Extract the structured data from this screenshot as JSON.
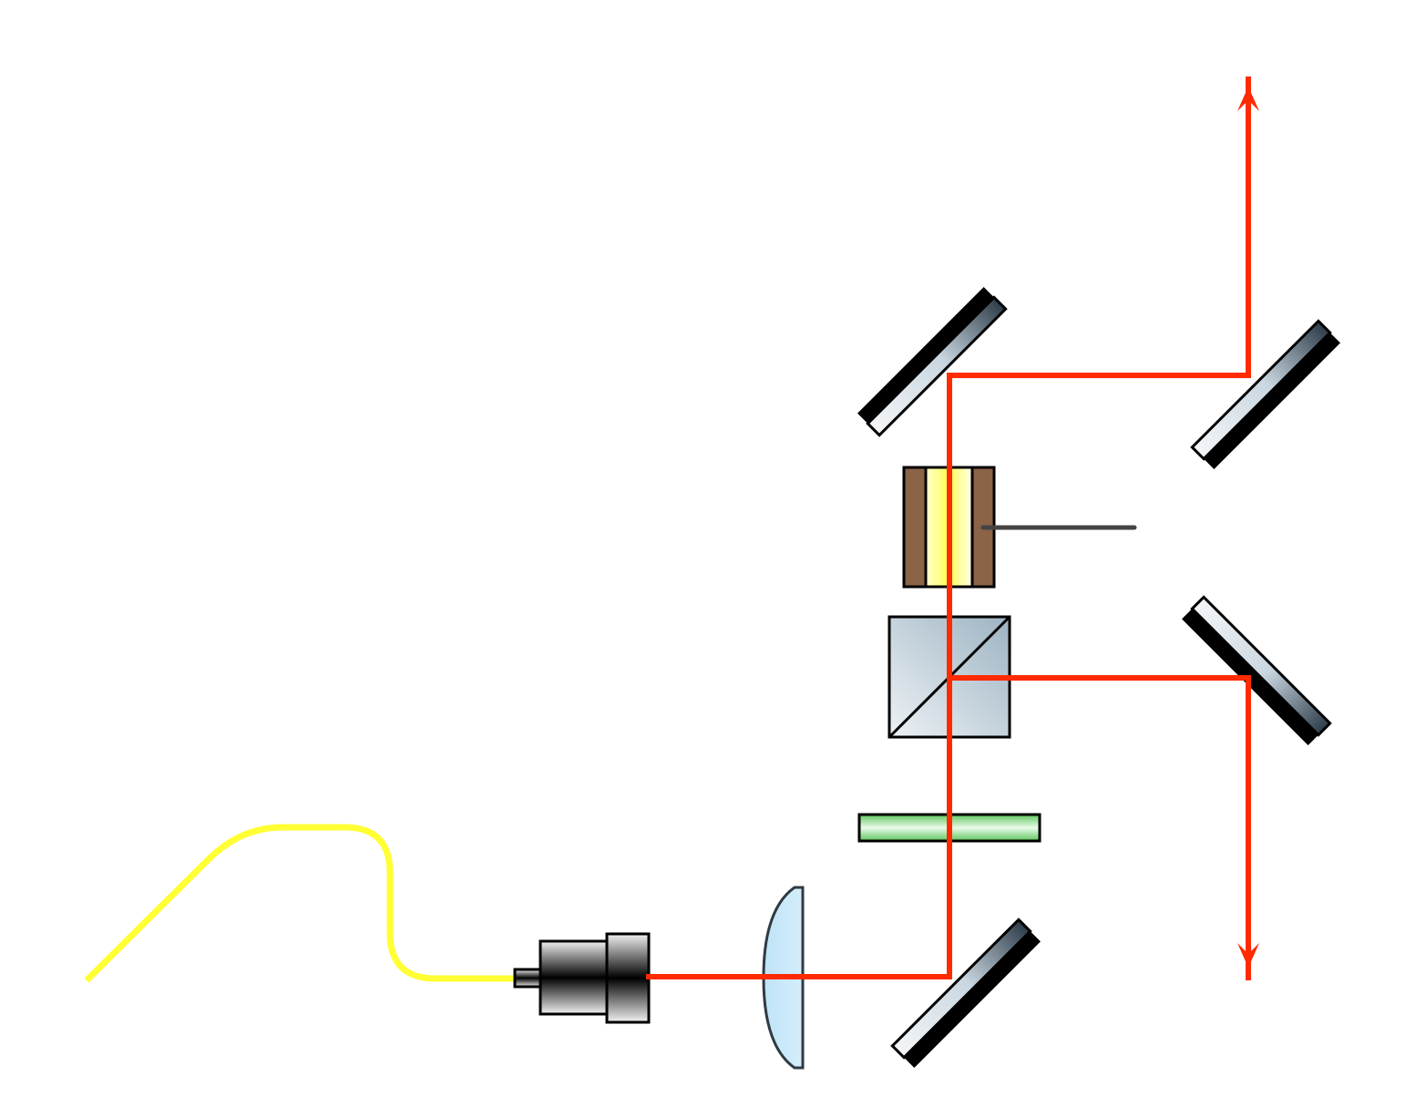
{
  "colors": {
    "background": "#ffffff",
    "beam": "#ff2a00",
    "fiber": "#ffff33",
    "outline": "#000000",
    "mirror_backing": "#000000",
    "lens_fill": "#c9e7f7",
    "lens_stroke": "#2f3a42",
    "waveplate_fill": "#a8e8a8",
    "crystal_outer": "#8b6347",
    "crystal_inner": "#ffff99",
    "wire": "#444444",
    "cube_fill": "#c8d6de"
  },
  "components": [
    {
      "id": "fiber",
      "icon": "fiber-cable-icon"
    },
    {
      "id": "fiber-collimator",
      "icon": "collimator-icon"
    },
    {
      "id": "lens",
      "icon": "plano-convex-lens-icon"
    },
    {
      "id": "mirror-input",
      "icon": "mirror-icon"
    },
    {
      "id": "waveplate",
      "icon": "waveplate-icon"
    },
    {
      "id": "beamsplitter-cube",
      "icon": "beamsplitter-cube-icon"
    },
    {
      "id": "crystal-modulator",
      "icon": "crystal-modulator-icon"
    },
    {
      "id": "mirror-top-left",
      "icon": "mirror-icon"
    },
    {
      "id": "mirror-top-right",
      "icon": "mirror-icon"
    },
    {
      "id": "mirror-bottom-right",
      "icon": "mirror-icon"
    },
    {
      "id": "output-arrow-up",
      "icon": "arrow-up-icon"
    },
    {
      "id": "output-arrow-down",
      "icon": "arrow-down-icon"
    }
  ]
}
